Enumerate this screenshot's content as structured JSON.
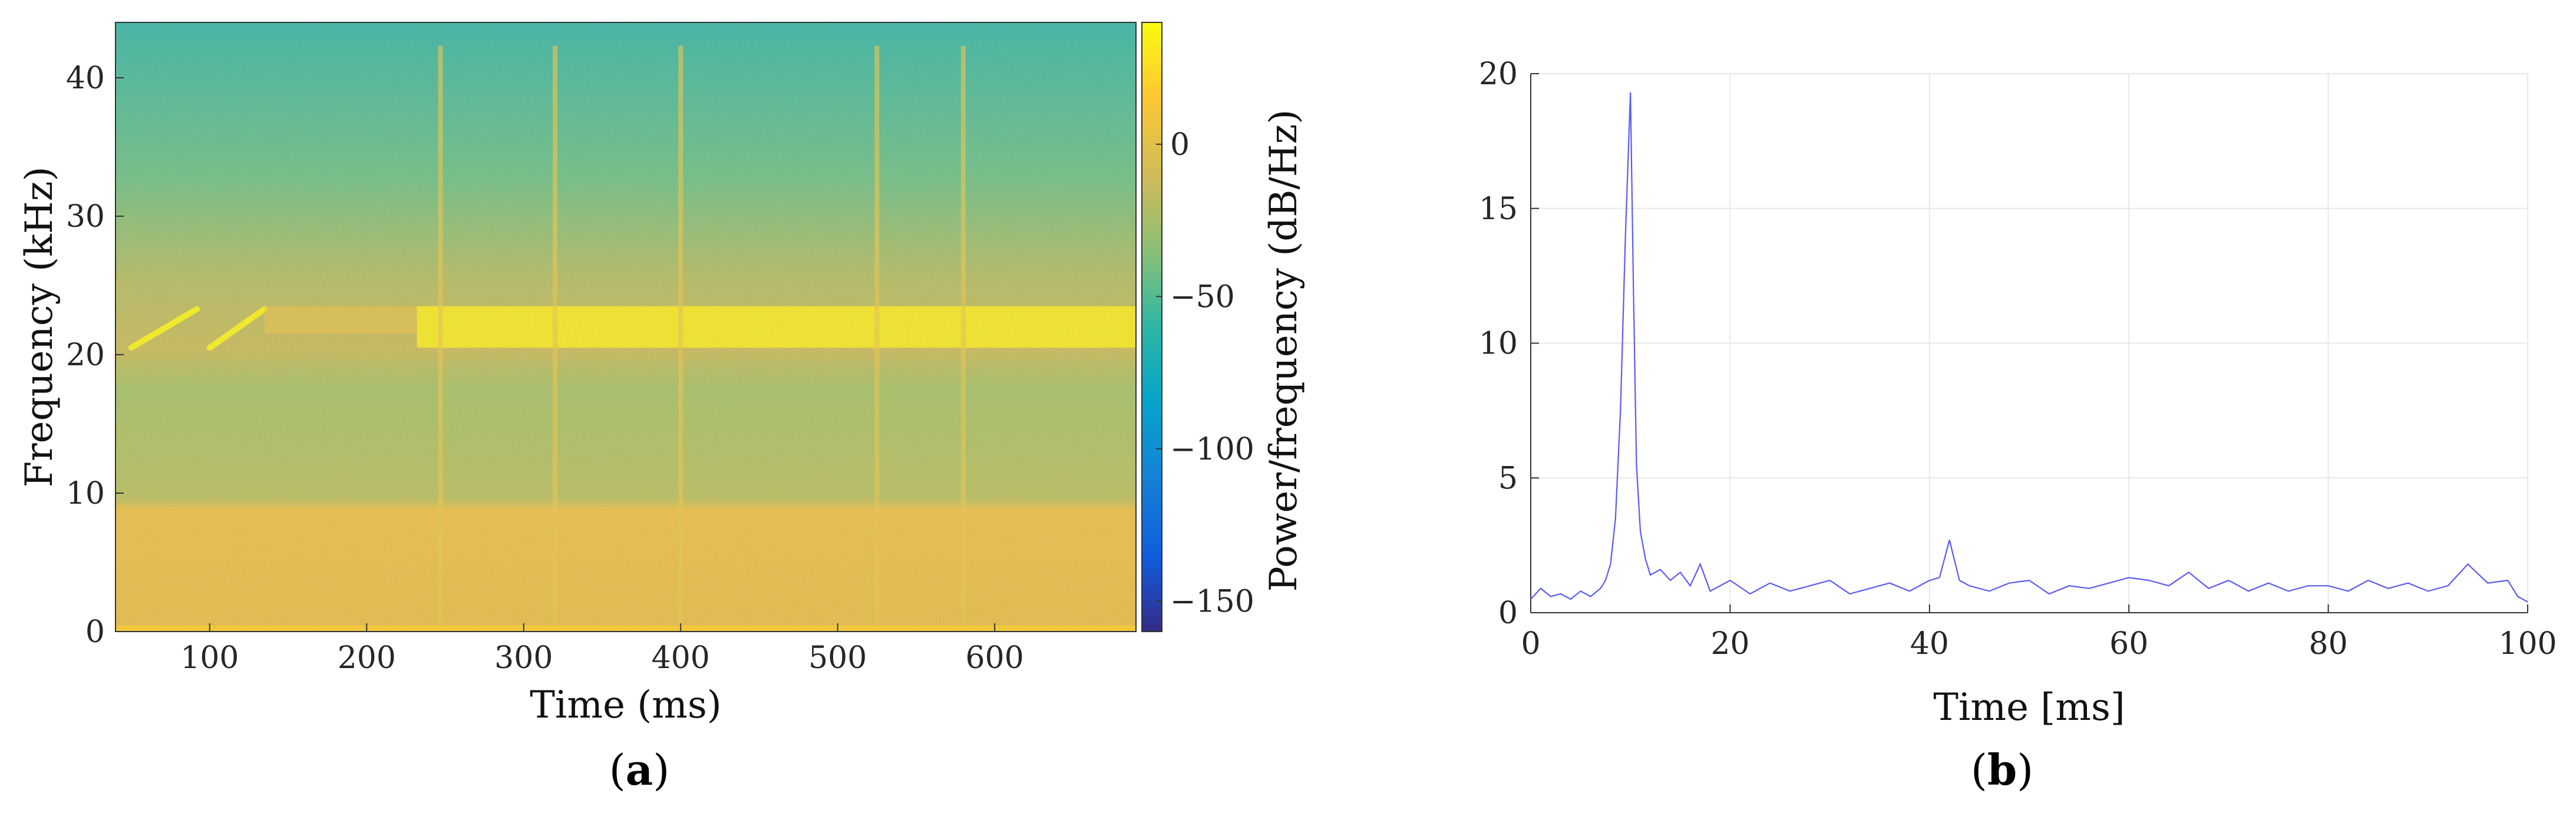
{
  "panels": [
    {
      "label_open": "(",
      "label_letter": "a",
      "label_close": ")"
    },
    {
      "label_open": "(",
      "label_letter": "b",
      "label_close": ")"
    }
  ],
  "chart_data": [
    {
      "type": "heatmap",
      "title": "",
      "xlabel": "Time (ms)",
      "ylabel": "Frequency (kHz)",
      "colorbar_label": "Power/frequency (dB/Hz)",
      "xlim": [
        40,
        690
      ],
      "ylim": [
        0,
        44
      ],
      "xticks": [
        100,
        200,
        300,
        400,
        500,
        600
      ],
      "yticks": [
        0,
        10,
        20,
        30,
        40
      ],
      "colorbar_lim": [
        -160,
        40
      ],
      "colorbar_ticks": [
        0,
        -50,
        -100,
        -150
      ],
      "colorbar_tick_labels": [
        "0",
        "−50",
        "−100",
        "−150"
      ],
      "colormap": "parula",
      "features": [
        {
          "kind": "low-band",
          "freq_range_khz": [
            0,
            9
          ],
          "level_db": 10
        },
        {
          "kind": "chirp",
          "time_ms": [
            50,
            92
          ],
          "freq_khz": [
            20.5,
            23.3
          ]
        },
        {
          "kind": "chirp",
          "time_ms": [
            100,
            135
          ],
          "freq_khz": [
            20.5,
            23.3
          ]
        },
        {
          "kind": "band",
          "time_ms": [
            232,
            690
          ],
          "freq_khz": [
            20.5,
            23.5
          ],
          "level_db": 30
        },
        {
          "kind": "vertical-streak",
          "time_ms": [
            247,
            320,
            400,
            525,
            580
          ]
        }
      ]
    },
    {
      "type": "line",
      "title": "",
      "xlabel": "Time [ms]",
      "ylabel": "",
      "xlim": [
        0,
        100
      ],
      "ylim": [
        0,
        20
      ],
      "xticks": [
        0,
        20,
        40,
        60,
        80,
        100
      ],
      "yticks": [
        0,
        5,
        10,
        15,
        20
      ],
      "grid": true,
      "line_color": "#5b5bf0",
      "series": [
        {
          "x": [
            0,
            1,
            2,
            3,
            4,
            5,
            6,
            7,
            7.5,
            8,
            8.5,
            9,
            9.5,
            10,
            10.3,
            10.6,
            11,
            11.5,
            12,
            13,
            14,
            15,
            16,
            17,
            18,
            20,
            22,
            24,
            26,
            28,
            30,
            32,
            34,
            36,
            38,
            40,
            41,
            42,
            43,
            44,
            46,
            48,
            50,
            52,
            54,
            56,
            58,
            60,
            62,
            64,
            66,
            68,
            70,
            72,
            74,
            76,
            78,
            80,
            82,
            84,
            86,
            88,
            90,
            92,
            94,
            96,
            98,
            99,
            100
          ],
          "y": [
            0.5,
            0.9,
            0.6,
            0.7,
            0.5,
            0.8,
            0.6,
            0.9,
            1.2,
            1.8,
            3.5,
            7.5,
            14.0,
            19.3,
            12.0,
            5.5,
            3.0,
            2.0,
            1.4,
            1.6,
            1.2,
            1.5,
            1.0,
            1.8,
            0.8,
            1.2,
            0.7,
            1.1,
            0.8,
            1.0,
            1.2,
            0.7,
            0.9,
            1.1,
            0.8,
            1.2,
            1.3,
            2.7,
            1.2,
            1.0,
            0.8,
            1.1,
            1.2,
            0.7,
            1.0,
            0.9,
            1.1,
            1.3,
            1.2,
            1.0,
            1.5,
            0.9,
            1.2,
            0.8,
            1.1,
            0.8,
            1.0,
            1.0,
            0.8,
            1.2,
            0.9,
            1.1,
            0.8,
            1.0,
            1.8,
            1.1,
            1.2,
            0.6,
            0.4
          ]
        }
      ]
    }
  ]
}
